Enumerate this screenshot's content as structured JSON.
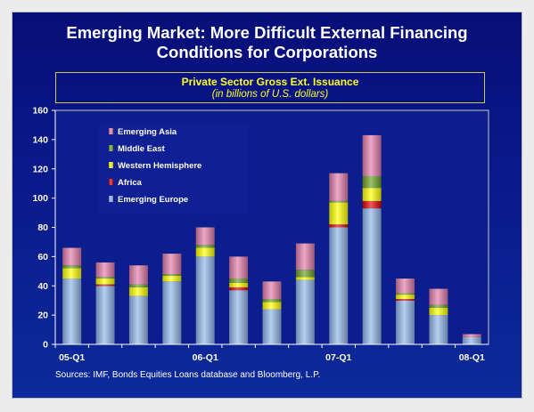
{
  "title_line1": "Emerging Market: More Difficult External Financing",
  "title_line2": "Conditions for Corporations",
  "subtitle_line1": "Private Sector Gross Ext. Issuance",
  "subtitle_line2": "(in billions of U.S. dollars)",
  "source": "Sources: IMF, Bonds Equities Loans database and Bloomberg, L.P.",
  "colors": {
    "background": "#0a1a8c",
    "plot_background": "#0c1e8e",
    "text": "#ffffff",
    "accent": "#ffff2a"
  },
  "chart_data": {
    "type": "bar",
    "stacked": true,
    "categories": [
      "05-Q1",
      "05-Q2",
      "05-Q3",
      "05-Q4",
      "06-Q1",
      "06-Q2",
      "06-Q3",
      "06-Q4",
      "07-Q1",
      "07-Q2",
      "07-Q3",
      "07-Q4",
      "08-Q1"
    ],
    "tick_labels": [
      "05-Q1",
      "",
      "",
      "",
      "06-Q1",
      "",
      "",
      "",
      "07-Q1",
      "",
      "",
      "",
      "08-Q1"
    ],
    "ylim": [
      0,
      160
    ],
    "yticks": [
      0,
      20,
      40,
      60,
      80,
      100,
      120,
      140,
      160
    ],
    "legend_position": "top-left",
    "grid": false,
    "series": [
      {
        "name": "Emerging Europe",
        "color": "#8fb3e8",
        "values": [
          45,
          40,
          33,
          43,
          60,
          37,
          24,
          44,
          80,
          93,
          30,
          20,
          5
        ]
      },
      {
        "name": "Africa",
        "color": "#e00000",
        "values": [
          0,
          1,
          0,
          0,
          0,
          2,
          0,
          0,
          2,
          5,
          1,
          0,
          0
        ]
      },
      {
        "name": "Western Hemisphere",
        "color": "#ffff00",
        "values": [
          7,
          4,
          6,
          4,
          6,
          3,
          5,
          2,
          15,
          9,
          3,
          5,
          0
        ]
      },
      {
        "name": "Middle East",
        "color": "#66a020",
        "values": [
          2,
          1,
          2,
          1,
          2,
          3,
          2,
          5,
          1,
          8,
          1,
          2,
          0
        ]
      },
      {
        "name": "Emerging Asia",
        "color": "#e07aa8",
        "values": [
          12,
          10,
          13,
          14,
          12,
          15,
          12,
          18,
          19,
          28,
          10,
          11,
          2
        ]
      }
    ],
    "legend_order": [
      "Emerging Asia",
      "Middle East",
      "Western Hemisphere",
      "Africa",
      "Emerging Europe"
    ]
  }
}
